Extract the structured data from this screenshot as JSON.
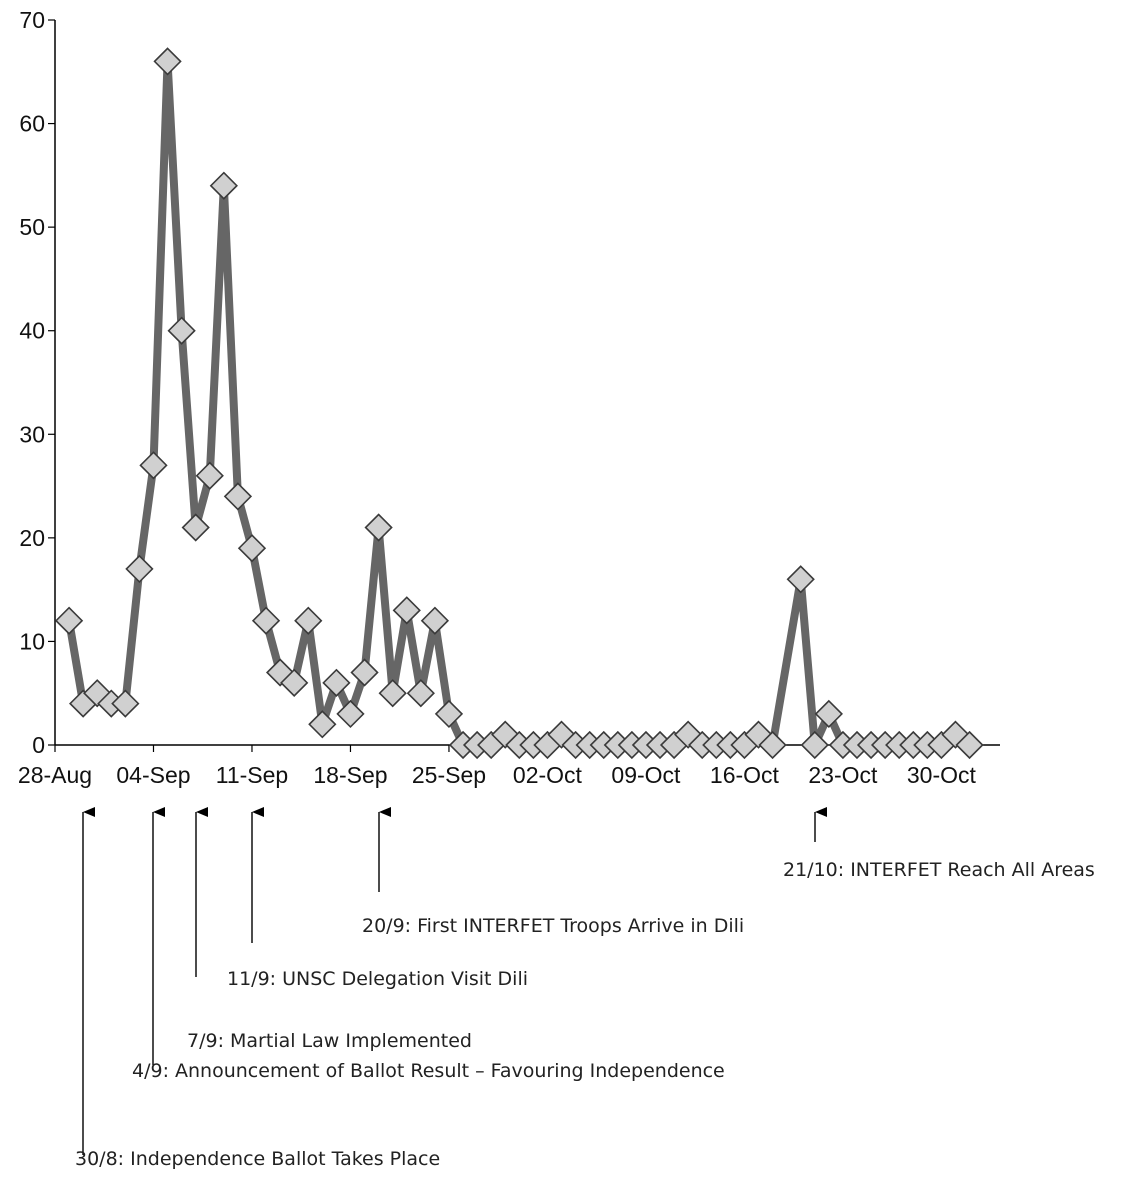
{
  "chart_data": {
    "type": "line",
    "title": "",
    "xlabel": "",
    "ylabel": "",
    "ylim": [
      0,
      70
    ],
    "y_ticks": [
      0,
      10,
      20,
      30,
      40,
      50,
      60,
      70
    ],
    "x_tick_labels": [
      "28-Aug",
      "04-Sep",
      "11-Sep",
      "18-Sep",
      "25-Sep",
      "02-Oct",
      "09-Oct",
      "16-Oct",
      "23-Oct",
      "30-Oct"
    ],
    "grid": false,
    "marker": "diamond",
    "colors": {
      "line": "#666666",
      "marker_fill": "#d0d0d0",
      "marker_stroke": "#3a3a3a",
      "axis": "#000000"
    },
    "x": [
      "29-Aug",
      "30-Aug",
      "31-Aug",
      "01-Sep",
      "02-Sep",
      "03-Sep",
      "04-Sep",
      "05-Sep",
      "06-Sep",
      "07-Sep",
      "08-Sep",
      "09-Sep",
      "10-Sep",
      "11-Sep",
      "12-Sep",
      "13-Sep",
      "14-Sep",
      "15-Sep",
      "16-Sep",
      "17-Sep",
      "18-Sep",
      "19-Sep",
      "20-Sep",
      "21-Sep",
      "22-Sep",
      "23-Sep",
      "24-Sep",
      "25-Sep",
      "26-Sep",
      "27-Sep",
      "28-Sep",
      "29-Sep",
      "30-Sep",
      "01-Oct",
      "02-Oct",
      "03-Oct",
      "04-Oct",
      "05-Oct",
      "06-Oct",
      "07-Oct",
      "08-Oct",
      "09-Oct",
      "10-Oct",
      "11-Oct",
      "12-Oct",
      "13-Oct",
      "14-Oct",
      "15-Oct",
      "16-Oct",
      "17-Oct",
      "18-Oct",
      "19-Oct",
      "20-Oct",
      "21-Oct",
      "22-Oct",
      "23-Oct",
      "24-Oct",
      "25-Oct",
      "26-Oct",
      "27-Oct",
      "28-Oct",
      "29-Oct",
      "30-Oct",
      "31-Oct",
      "01-Nov"
    ],
    "series": [
      {
        "values": [
          12,
          4,
          5,
          4,
          4,
          17,
          27,
          66,
          40,
          21,
          26,
          54,
          24,
          19,
          12,
          7,
          6,
          12,
          2,
          6,
          3,
          7,
          21,
          5,
          13,
          5,
          12,
          3,
          0,
          0,
          0,
          1,
          0,
          0,
          0,
          1,
          0,
          0,
          0,
          0,
          0,
          0,
          0,
          0,
          1,
          0,
          0,
          0,
          0,
          1,
          0,
          null,
          16,
          0,
          3,
          0,
          0,
          0,
          0,
          0,
          0,
          0,
          0,
          1,
          0
        ]
      }
    ],
    "annotations": [
      {
        "date": "30-Aug",
        "text": "30/8: Independence Ballot Takes Place"
      },
      {
        "date": "04-Sep",
        "text": "4/9: Announcement of Ballot Result – Favouring Independence"
      },
      {
        "date": "07-Sep",
        "text": "7/9: Martial Law Implemented"
      },
      {
        "date": "11-Sep",
        "text": "11/9: UNSC Delegation Visit Dili"
      },
      {
        "date": "20-Sep",
        "text": "20/9: First INTERFET Troops Arrive in Dili"
      },
      {
        "date": "21-Oct",
        "text": "21/10: INTERFET Reach All Areas"
      }
    ]
  }
}
